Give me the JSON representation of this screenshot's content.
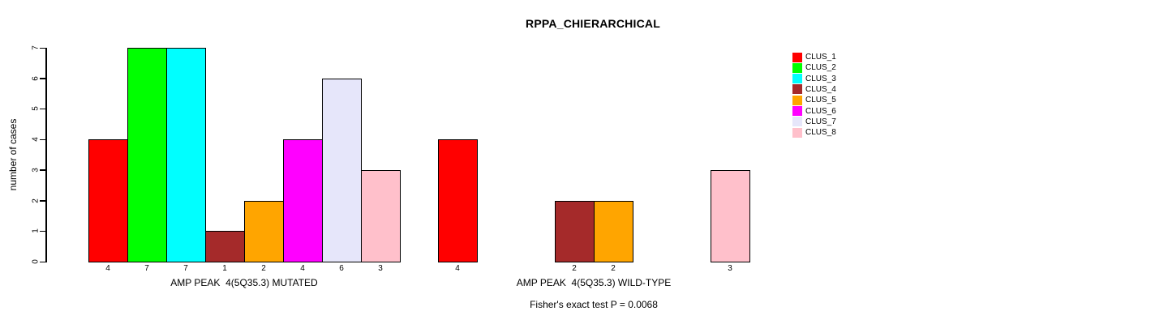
{
  "chart_data": {
    "type": "bar",
    "title": "RPPA_CHIERARCHICAL",
    "ylabel": "number of cases",
    "ylim": [
      0,
      7
    ],
    "yticks": [
      0,
      1,
      2,
      3,
      4,
      5,
      6,
      7
    ],
    "grid": false,
    "legend_position": "right",
    "legend": [
      {
        "label": "CLUS_1",
        "color": "#FF0000"
      },
      {
        "label": "CLUS_2",
        "color": "#00FF00"
      },
      {
        "label": "CLUS_3",
        "color": "#00FFFF"
      },
      {
        "label": "CLUS_4",
        "color": "#A52A2A"
      },
      {
        "label": "CLUS_5",
        "color": "#FFA500"
      },
      {
        "label": "CLUS_6",
        "color": "#FF00FF"
      },
      {
        "label": "CLUS_7",
        "color": "#E6E6FA"
      },
      {
        "label": "CLUS_8",
        "color": "#FFC0CB"
      }
    ],
    "groups": [
      {
        "xlabel": "AMP PEAK  4(5Q35.3) MUTATED",
        "values": [
          4,
          7,
          7,
          1,
          2,
          4,
          6,
          3
        ]
      },
      {
        "xlabel": "AMP PEAK  4(5Q35.3) WILD-TYPE",
        "values": [
          4,
          0,
          0,
          2,
          2,
          0,
          0,
          3
        ]
      }
    ],
    "footnote": "Fisher's exact test P = 0.0068"
  }
}
